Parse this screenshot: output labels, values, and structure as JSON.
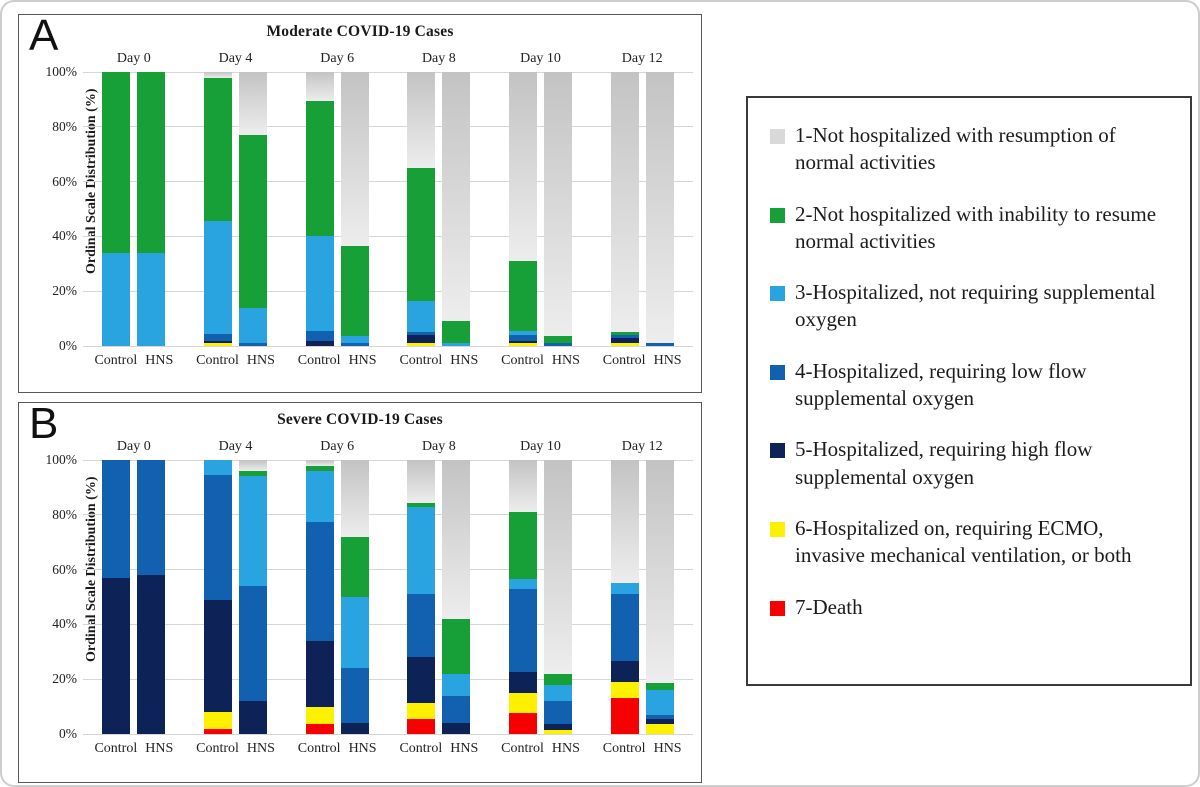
{
  "colors": {
    "scale_1_gray": "#d9d9d9",
    "scale_2_green": "#18a038",
    "scale_3_light_blue": "#29a4e1",
    "scale_4_blue": "#1260b0",
    "scale_5_navy": "#0d2256",
    "scale_6_yellow": "#fdf000",
    "scale_7_red": "#f70000",
    "gray_gradient_top": "#c3c3c3",
    "gray_gradient_bottom": "#ededed"
  },
  "segment_order_bottom_to_top": [
    "scale_7_red",
    "scale_6_yellow",
    "scale_5_navy",
    "scale_4_blue",
    "scale_3_light_blue",
    "scale_2_green",
    "scale_1_gray"
  ],
  "panels": [
    {
      "letter": "A",
      "title": "Moderate COVID-19 Cases",
      "y_axis_label": "Ordinal Scale Distribution (%)"
    },
    {
      "letter": "B",
      "title": "Severe COVID-19 Cases",
      "y_axis_label": "Ordinal Scale Distribution (%)"
    }
  ],
  "chart_data": [
    {
      "type": "bar",
      "stacked": true,
      "title": "Moderate COVID-19 Cases",
      "xlabel": "",
      "ylabel": "Ordinal Scale Distribution (%)",
      "ylim": [
        0,
        100
      ],
      "yticks": [
        "0%",
        "20%",
        "40%",
        "60%",
        "80%",
        "100%"
      ],
      "categories": [
        "Day 0",
        "Day 4",
        "Day 6",
        "Day 8",
        "Day 10",
        "Day 12"
      ],
      "bar_labels": [
        "Control",
        "HNS"
      ],
      "segment_series_bottom_to_top": [
        "7-Death",
        "6-Hospitalized on, requiring ECMO, invasive mechanical ventilation, or both",
        "5-Hospitalized, requiring high flow supplemental oxygen",
        "4-Hospitalized, requiring low flow supplemental oxygen",
        "3-Hospitalized, not requiring supplemental oxygen",
        "2-Not hospitalized with inability to resume normal activities",
        "1-Not hospitalized with resumption of normal activities"
      ],
      "groups": [
        {
          "category": "Day 0",
          "bars": [
            {
              "label": "Control",
              "values": [
                0,
                0,
                0,
                0,
                34,
                66,
                0
              ]
            },
            {
              "label": "HNS",
              "values": [
                0,
                0,
                0,
                0,
                34,
                66,
                0
              ]
            }
          ]
        },
        {
          "category": "Day 4",
          "bars": [
            {
              "label": "Control",
              "values": [
                0,
                1,
                1,
                2.5,
                41,
                52.5,
                2
              ]
            },
            {
              "label": "HNS",
              "values": [
                0,
                0,
                0,
                1,
                13,
                63,
                23
              ]
            }
          ]
        },
        {
          "category": "Day 6",
          "bars": [
            {
              "label": "Control",
              "values": [
                0,
                0,
                2,
                3.5,
                34.5,
                49.5,
                10.5
              ]
            },
            {
              "label": "HNS",
              "values": [
                0,
                0,
                0,
                1,
                2.5,
                33,
                63.5
              ]
            }
          ]
        },
        {
          "category": "Day 8",
          "bars": [
            {
              "label": "Control",
              "values": [
                0,
                1,
                3,
                1,
                11.5,
                48.5,
                35
              ]
            },
            {
              "label": "HNS",
              "values": [
                0,
                0,
                0,
                0,
                1,
                8,
                91
              ]
            }
          ]
        },
        {
          "category": "Day 10",
          "bars": [
            {
              "label": "Control",
              "values": [
                0,
                1,
                1,
                2,
                1.5,
                25.5,
                69
              ]
            },
            {
              "label": "HNS",
              "values": [
                0,
                0,
                0,
                1,
                0,
                2.5,
                96.5
              ]
            }
          ]
        },
        {
          "category": "Day 12",
          "bars": [
            {
              "label": "Control",
              "values": [
                0,
                1,
                2,
                1,
                0,
                1,
                95
              ]
            },
            {
              "label": "HNS",
              "values": [
                0,
                0,
                0,
                1,
                0,
                0,
                99
              ]
            }
          ]
        }
      ]
    },
    {
      "type": "bar",
      "stacked": true,
      "title": "Severe COVID-19 Cases",
      "xlabel": "",
      "ylabel": "Ordinal Scale Distribution (%)",
      "ylim": [
        0,
        100
      ],
      "yticks": [
        "0%",
        "20%",
        "40%",
        "60%",
        "80%",
        "100%"
      ],
      "categories": [
        "Day 0",
        "Day 4",
        "Day 6",
        "Day 8",
        "Day 10",
        "Day 12"
      ],
      "bar_labels": [
        "Control",
        "HNS"
      ],
      "segment_series_bottom_to_top": [
        "7-Death",
        "6-Hospitalized on, requiring ECMO, invasive mechanical ventilation, or both",
        "5-Hospitalized, requiring high flow supplemental oxygen",
        "4-Hospitalized, requiring low flow supplemental oxygen",
        "3-Hospitalized, not requiring supplemental oxygen",
        "2-Not hospitalized with inability to resume normal activities",
        "1-Not hospitalized with resumption of normal activities"
      ],
      "groups": [
        {
          "category": "Day 0",
          "bars": [
            {
              "label": "Control",
              "values": [
                0,
                0,
                57,
                43,
                0,
                0,
                0
              ]
            },
            {
              "label": "HNS",
              "values": [
                0,
                0,
                58,
                42,
                0,
                0,
                0
              ]
            }
          ]
        },
        {
          "category": "Day 4",
          "bars": [
            {
              "label": "Control",
              "values": [
                2,
                6,
                41,
                45.5,
                5.5,
                0,
                0
              ]
            },
            {
              "label": "HNS",
              "values": [
                0,
                0,
                12,
                42,
                40,
                2,
                4
              ]
            }
          ]
        },
        {
          "category": "Day 6",
          "bars": [
            {
              "label": "Control",
              "values": [
                3.5,
                6.5,
                24,
                43.5,
                18.5,
                2,
                2
              ]
            },
            {
              "label": "HNS",
              "values": [
                0,
                0,
                4,
                20,
                26,
                22,
                28
              ]
            }
          ]
        },
        {
          "category": "Day 8",
          "bars": [
            {
              "label": "Control",
              "values": [
                5.5,
                6,
                16.5,
                23,
                32,
                1.5,
                15.5
              ]
            },
            {
              "label": "HNS",
              "values": [
                0,
                0,
                4,
                10,
                8,
                20,
                58
              ]
            }
          ]
        },
        {
          "category": "Day 10",
          "bars": [
            {
              "label": "Control",
              "values": [
                7.5,
                7.5,
                7.5,
                30.5,
                3.5,
                24.5,
                19
              ]
            },
            {
              "label": "HNS",
              "values": [
                0,
                1.5,
                2,
                8.5,
                6,
                4,
                78
              ]
            }
          ]
        },
        {
          "category": "Day 12",
          "bars": [
            {
              "label": "Control",
              "values": [
                13,
                6,
                7.5,
                24.5,
                4,
                0,
                45
              ]
            },
            {
              "label": "HNS",
              "values": [
                0,
                3.5,
                2,
                1.5,
                9,
                2.5,
                81.5
              ]
            }
          ]
        }
      ]
    }
  ],
  "legend": {
    "items": [
      {
        "label": "1-Not hospitalized with resumption of normal activities",
        "color_key": "scale_1_gray"
      },
      {
        "label": "2-Not hospitalized with inability to resume normal activities",
        "color_key": "scale_2_green"
      },
      {
        "label": "3-Hospitalized, not requiring supplemental oxygen",
        "color_key": "scale_3_light_blue"
      },
      {
        "label": "4-Hospitalized, requiring low flow supplemental oxygen",
        "color_key": "scale_4_blue"
      },
      {
        "label": "5-Hospitalized, requiring high flow supplemental oxygen",
        "color_key": "scale_5_navy"
      },
      {
        "label": "6-Hospitalized on, requiring ECMO, invasive mechanical ventilation, or both",
        "color_key": "scale_6_yellow"
      },
      {
        "label": "7-Death",
        "color_key": "scale_7_red"
      }
    ]
  }
}
